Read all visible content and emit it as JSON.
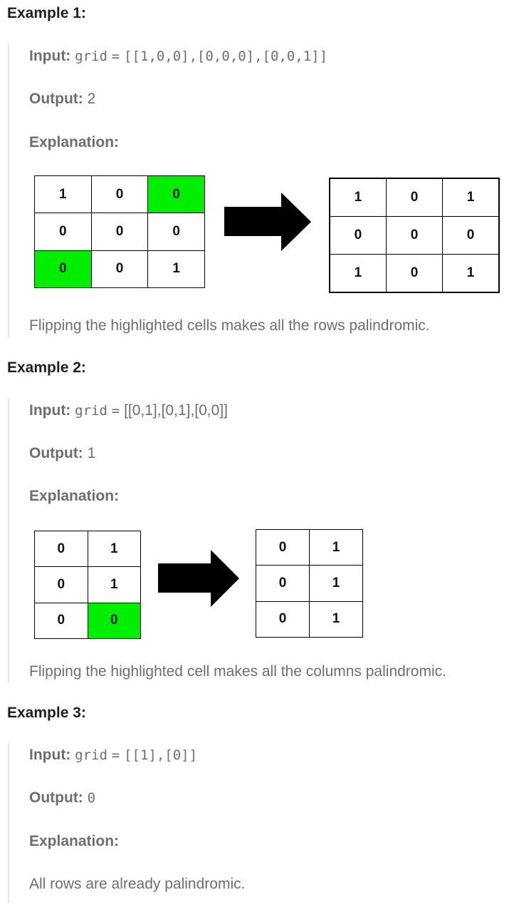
{
  "examples": [
    {
      "heading": "Example 1:",
      "input_label": "Input:",
      "input_var": "grid",
      "input_eq": "=",
      "input_value": "[[1,0,0],[0,0,0],[0,0,1]]",
      "output_label": "Output:",
      "output_value": "2",
      "explanation_label": "Explanation:",
      "before_grid": [
        [
          "1",
          "0",
          "0"
        ],
        [
          "0",
          "0",
          "0"
        ],
        [
          "0",
          "0",
          "1"
        ]
      ],
      "highlighted_cells": [
        [
          0,
          2
        ],
        [
          2,
          0
        ]
      ],
      "after_grid": [
        [
          "1",
          "0",
          "1"
        ],
        [
          "0",
          "0",
          "0"
        ],
        [
          "1",
          "0",
          "1"
        ]
      ],
      "explanation_text": "Flipping the highlighted cells makes all the rows palindromic."
    },
    {
      "heading": "Example 2:",
      "input_label": "Input:",
      "input_var": "grid",
      "input_eq": "=",
      "input_value": "[[0,1],[0,1],[0,0]]",
      "output_label": "Output:",
      "output_value": "1",
      "explanation_label": "Explanation:",
      "before_grid": [
        [
          "0",
          "1"
        ],
        [
          "0",
          "1"
        ],
        [
          "0",
          "0"
        ]
      ],
      "highlighted_cells": [
        [
          2,
          1
        ]
      ],
      "after_grid": [
        [
          "0",
          "1"
        ],
        [
          "0",
          "1"
        ],
        [
          "0",
          "1"
        ]
      ],
      "explanation_text": "Flipping the highlighted cell makes all the columns palindromic."
    },
    {
      "heading": "Example 3:",
      "input_label": "Input:",
      "input_var": "grid",
      "input_eq": "=",
      "input_value": "[[1],[0]]",
      "output_label": "Output:",
      "output_value": "0",
      "explanation_label": "Explanation:",
      "explanation_text": "All rows are already palindromic."
    }
  ],
  "colors": {
    "highlight": "#00ef00",
    "arrow": "#000000",
    "label": "#6e6e6e"
  }
}
